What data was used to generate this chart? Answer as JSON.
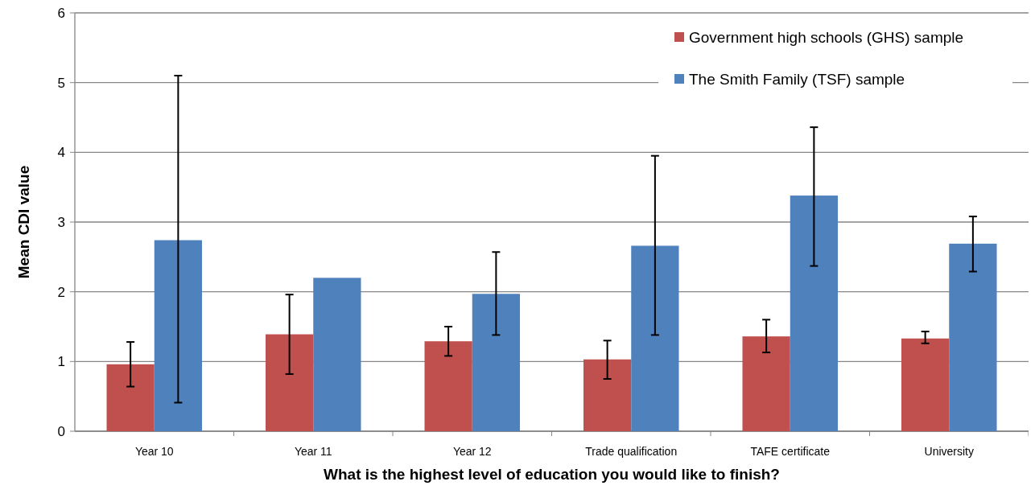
{
  "chart_data": {
    "type": "bar",
    "xlabel": "What is the highest level of education you would like to finish?",
    "ylabel": "Mean CDI value",
    "categories": [
      "Year 10",
      "Year 11",
      "Year 12",
      "Trade qualification",
      "TAFE certificate",
      "University"
    ],
    "series": [
      {
        "name": "Government high schools (GHS) sample",
        "color": "#c0504d",
        "values": [
          0.96,
          1.39,
          1.29,
          1.03,
          1.36,
          1.33
        ],
        "errors": [
          [
            0.64,
            1.28
          ],
          [
            0.82,
            1.96
          ],
          [
            1.08,
            1.5
          ],
          [
            0.75,
            1.3
          ],
          [
            1.13,
            1.6
          ],
          [
            1.26,
            1.43
          ]
        ]
      },
      {
        "name": "The Smith Family (TSF) sample",
        "color": "#4f81bd",
        "values": [
          2.74,
          2.2,
          1.97,
          2.66,
          3.38,
          2.69
        ],
        "errors": [
          [
            0.41,
            5.1
          ],
          null,
          [
            1.38,
            2.57
          ],
          [
            1.38,
            3.95
          ],
          [
            2.37,
            4.36
          ],
          [
            2.29,
            3.08
          ]
        ]
      }
    ],
    "ylim": [
      0,
      6
    ],
    "yticks": [
      0,
      1,
      2,
      3,
      4,
      5,
      6
    ],
    "grid": "y",
    "legend": "top right"
  }
}
